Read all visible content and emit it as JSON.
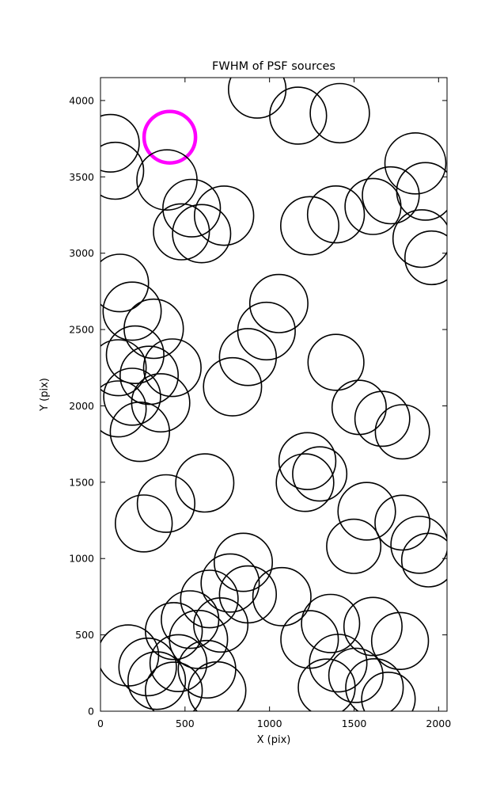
{
  "chart_data": {
    "type": "scatter",
    "title": "FWHM of PSF sources",
    "xlabel": "X (pix)",
    "ylabel": "Y (pix)",
    "xlim": [
      0,
      2050
    ],
    "ylim": [
      0,
      4150
    ],
    "x_ticks": [
      0,
      500,
      1000,
      1500,
      2000
    ],
    "y_ticks": [
      0,
      500,
      1000,
      1500,
      2000,
      2500,
      3000,
      3500,
      4000
    ],
    "grid": false,
    "legend": "none",
    "marker": "open-circle",
    "stroke_color": "#000000",
    "highlight_color": "#ff00ff",
    "points_format": "[x, y, radius, highlight(0|1)]",
    "points": [
      [
        410,
        3760,
        152,
        1
      ],
      [
        59,
        3720,
        170,
        0
      ],
      [
        87,
        3540,
        168,
        0
      ],
      [
        393,
        3480,
        178,
        0
      ],
      [
        539,
        3295,
        170,
        0
      ],
      [
        479,
        3140,
        165,
        0
      ],
      [
        598,
        3128,
        172,
        0
      ],
      [
        731,
        3246,
        175,
        0
      ],
      [
        927,
        4073,
        170,
        0
      ],
      [
        1169,
        3901,
        168,
        0
      ],
      [
        1416,
        3917,
        175,
        0
      ],
      [
        1863,
        3588,
        180,
        0
      ],
      [
        1922,
        3405,
        170,
        0
      ],
      [
        1717,
        3379,
        168,
        0
      ],
      [
        1612,
        3306,
        165,
        0
      ],
      [
        1900,
        3096,
        170,
        0
      ],
      [
        1959,
        2970,
        158,
        0
      ],
      [
        1238,
        3180,
        172,
        0
      ],
      [
        1393,
        3254,
        168,
        0
      ],
      [
        114,
        2805,
        170,
        0
      ],
      [
        187,
        2620,
        172,
        0
      ],
      [
        315,
        2505,
        175,
        0
      ],
      [
        205,
        2335,
        170,
        0
      ],
      [
        105,
        2250,
        165,
        0
      ],
      [
        288,
        2200,
        172,
        0
      ],
      [
        425,
        2250,
        170,
        0
      ],
      [
        187,
        2060,
        168,
        0
      ],
      [
        356,
        2020,
        172,
        0
      ],
      [
        105,
        1980,
        165,
        0
      ],
      [
        233,
        1830,
        175,
        0
      ],
      [
        1055,
        2670,
        172,
        0
      ],
      [
        982,
        2490,
        170,
        0
      ],
      [
        872,
        2320,
        168,
        0
      ],
      [
        781,
        2125,
        172,
        0
      ],
      [
        1393,
        2285,
        165,
        0
      ],
      [
        1530,
        1990,
        160,
        0
      ],
      [
        1667,
        1915,
        162,
        0
      ],
      [
        1786,
        1830,
        160,
        0
      ],
      [
        1224,
        1638,
        168,
        0
      ],
      [
        1210,
        1497,
        170,
        0
      ],
      [
        1297,
        1554,
        160,
        0
      ],
      [
        617,
        1495,
        172,
        0
      ],
      [
        388,
        1360,
        170,
        0
      ],
      [
        256,
        1230,
        168,
        0
      ],
      [
        1575,
        1310,
        170,
        0
      ],
      [
        1786,
        1235,
        162,
        0
      ],
      [
        1886,
        1090,
        168,
        0
      ],
      [
        1940,
        990,
        158,
        0
      ],
      [
        1498,
        1080,
        160,
        0
      ],
      [
        845,
        975,
        172,
        0
      ],
      [
        767,
        840,
        172,
        0
      ],
      [
        644,
        735,
        170,
        0
      ],
      [
        872,
        765,
        168,
        0
      ],
      [
        1073,
        750,
        172,
        0
      ],
      [
        530,
        600,
        170,
        0
      ],
      [
        434,
        525,
        168,
        0
      ],
      [
        580,
        470,
        172,
        0
      ],
      [
        712,
        565,
        160,
        0
      ],
      [
        1361,
        575,
        172,
        0
      ],
      [
        1237,
        470,
        170,
        0
      ],
      [
        1612,
        555,
        172,
        0
      ],
      [
        1772,
        460,
        168,
        0
      ],
      [
        164,
        365,
        180,
        0
      ],
      [
        279,
        290,
        170,
        0
      ],
      [
        461,
        315,
        168,
        0
      ],
      [
        630,
        275,
        170,
        0
      ],
      [
        1406,
        315,
        170,
        0
      ],
      [
        1511,
        235,
        160,
        0
      ],
      [
        1338,
        155,
        168,
        0
      ],
      [
        1621,
        155,
        170,
        0
      ],
      [
        690,
        135,
        170,
        0
      ],
      [
        434,
        135,
        168,
        0
      ],
      [
        1703,
        80,
        158,
        0
      ],
      [
        333,
        200,
        170,
        0
      ]
    ]
  }
}
